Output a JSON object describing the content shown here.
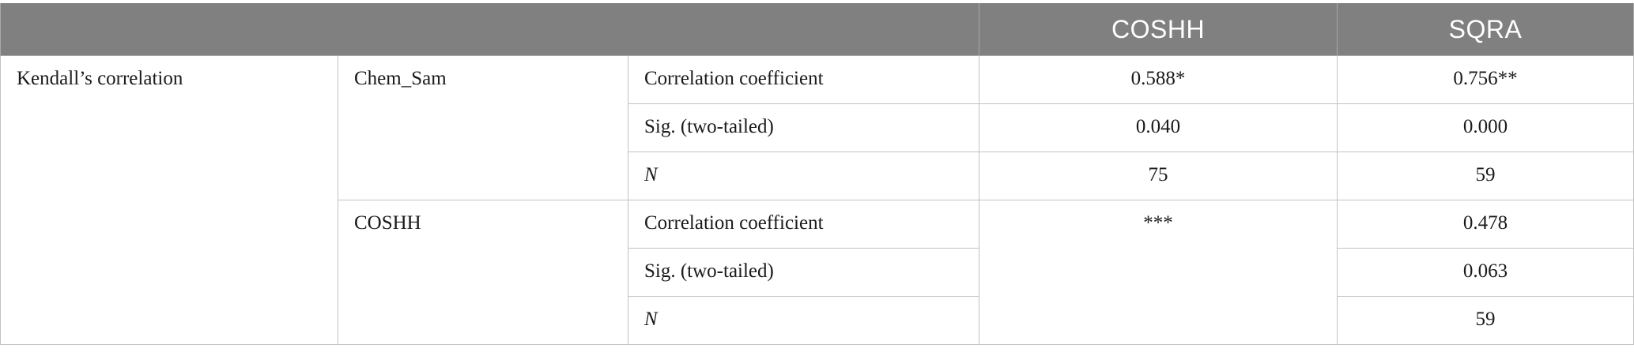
{
  "table": {
    "header": {
      "blank": "",
      "col_coshh": "COSHH",
      "col_sqra": "SQRA"
    },
    "group_label": "Kendall’s correlation",
    "blocks": [
      {
        "variable": "Chem_Sam",
        "rows": [
          {
            "stat": "Correlation coefficient",
            "coshh": "0.588*",
            "sqra": "0.756**"
          },
          {
            "stat": "Sig. (two-tailed)",
            "coshh": "0.040",
            "sqra": "0.000"
          },
          {
            "stat": "N",
            "coshh": "75",
            "sqra": "59"
          }
        ]
      },
      {
        "variable": "COSHH",
        "coshh_merged": "***",
        "rows": [
          {
            "stat": "Correlation coefficient",
            "sqra": "0.478"
          },
          {
            "stat": "Sig. (two-tailed)",
            "sqra": "0.063"
          },
          {
            "stat": "N",
            "sqra": "59"
          }
        ]
      }
    ]
  }
}
